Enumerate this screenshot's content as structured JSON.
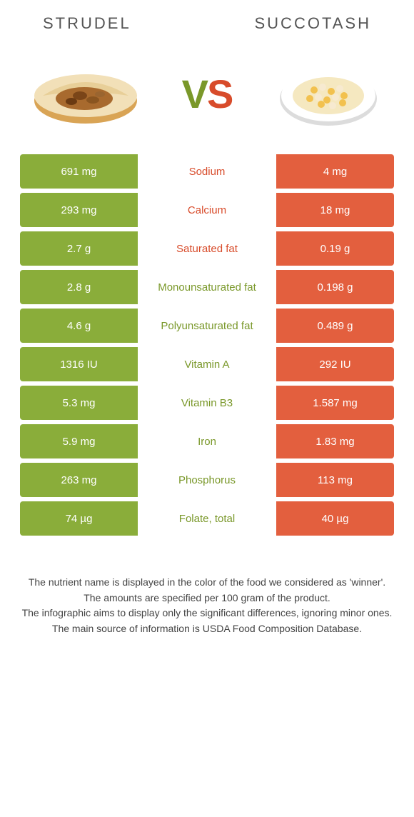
{
  "colors": {
    "left_food": "#8aad3a",
    "right_food": "#e35f3e",
    "left_food_text": "#7a982a",
    "right_food_text": "#d84c2b",
    "row_bg_left": "#8aad3a",
    "row_bg_right": "#e35f3e",
    "cell_text": "#ffffff"
  },
  "header": {
    "left": "Strudel",
    "right": "Succotash"
  },
  "vs": {
    "v": "V",
    "s": "S"
  },
  "rows": [
    {
      "left": "691 mg",
      "label": "Sodium",
      "right": "4 mg",
      "winner": "right"
    },
    {
      "left": "293 mg",
      "label": "Calcium",
      "right": "18 mg",
      "winner": "right"
    },
    {
      "left": "2.7 g",
      "label": "Saturated fat",
      "right": "0.19 g",
      "winner": "right"
    },
    {
      "left": "2.8 g",
      "label": "Monounsaturated fat",
      "right": "0.198 g",
      "winner": "left"
    },
    {
      "left": "4.6 g",
      "label": "Polyunsaturated fat",
      "right": "0.489 g",
      "winner": "left"
    },
    {
      "left": "1316 IU",
      "label": "Vitamin A",
      "right": "292 IU",
      "winner": "left"
    },
    {
      "left": "5.3 mg",
      "label": "Vitamin B3",
      "right": "1.587 mg",
      "winner": "left"
    },
    {
      "left": "5.9 mg",
      "label": "Iron",
      "right": "1.83 mg",
      "winner": "left"
    },
    {
      "left": "263 mg",
      "label": "Phosphorus",
      "right": "113 mg",
      "winner": "left"
    },
    {
      "left": "74 µg",
      "label": "Folate, total",
      "right": "40 µg",
      "winner": "left"
    }
  ],
  "footer": {
    "l1": "The nutrient name is displayed in the color of the food we considered as 'winner'.",
    "l2": "The amounts are specified per 100 gram of the product.",
    "l3": "The infographic aims to display only the significant differences, ignoring minor ones.",
    "l4": "The main source of information is USDA Food Composition Database."
  }
}
